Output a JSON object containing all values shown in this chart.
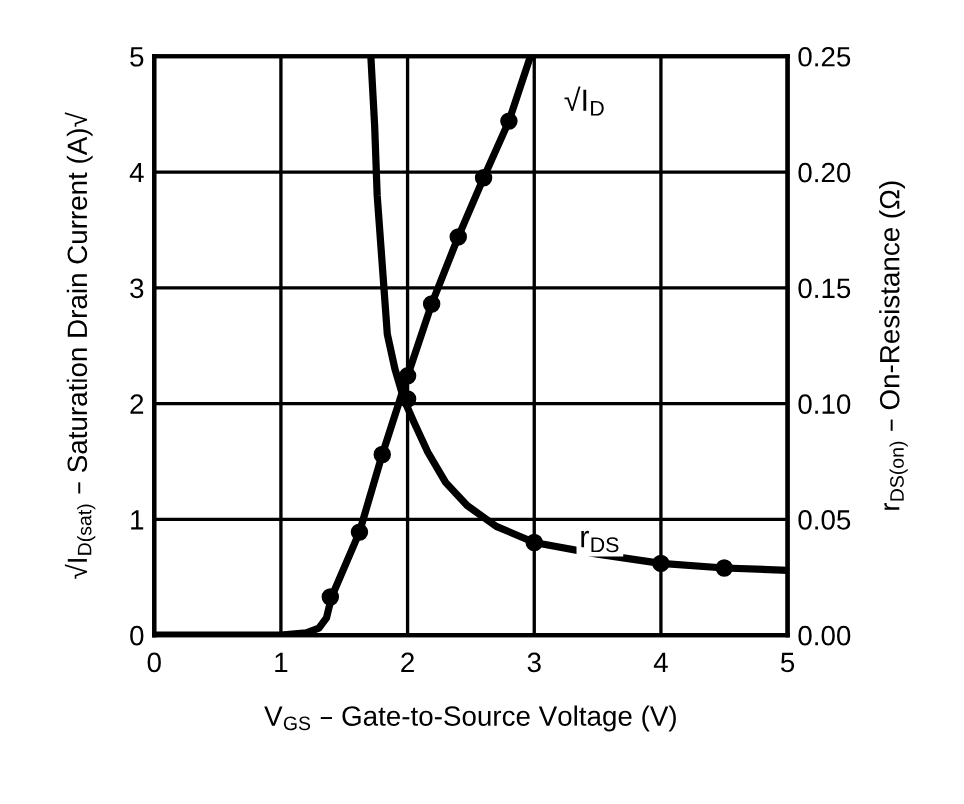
{
  "chart_data": {
    "type": "line",
    "xlabel": "V$_{GS}$ – Gate-to-Source Voltage (V)",
    "ylabel": "√I$_{D(sat)}$ – Saturation Drain Current (A)√",
    "y2label": "r$_{DS(on)}$ – On-Resistance (Ω)",
    "series": [
      {
        "name": "√I$_{D}$",
        "color": "#000000",
        "marker": "none",
        "x": [
          0,
          1.0,
          1.2,
          1.3,
          1.36,
          1.4,
          1.62,
          1.8,
          2.0,
          2.19,
          2.4,
          2.6,
          2.8,
          2.97
        ],
        "values": [
          0,
          0,
          0.02,
          0.06,
          0.15,
          0.33,
          0.89,
          1.56,
          2.24,
          2.86,
          3.44,
          3.95,
          4.44,
          5.0
        ]
      },
      {
        "type": "scatter",
        "color": "#000000",
        "marker": "circle",
        "x": [
          1.39,
          1.62,
          1.8,
          2.0,
          2.19,
          2.4,
          2.6,
          2.8
        ],
        "values": [
          0.33,
          0.89,
          1.56,
          2.24,
          2.86,
          3.44,
          3.95,
          4.44
        ]
      },
      {
        "name": "r$_{DS}$",
        "axis": "y2",
        "color": "#000000",
        "marker": "none",
        "x": [
          1.71,
          1.74,
          1.76,
          1.8,
          1.84,
          1.9,
          1.97,
          2.05,
          2.16,
          2.3,
          2.47,
          2.7,
          3.0,
          3.5,
          4.0,
          4.5,
          5.0
        ],
        "values": [
          0.25,
          0.22,
          0.19,
          0.16,
          0.13,
          0.115,
          0.102,
          0.092,
          0.079,
          0.066,
          0.056,
          0.047,
          0.04,
          0.035,
          0.031,
          0.029,
          0.028
        ]
      },
      {
        "type": "scatter",
        "axis": "y2",
        "color": "#000000",
        "marker": "circle",
        "x": [
          2.0,
          3.0,
          4.0,
          4.5
        ],
        "values": [
          0.102,
          0.04,
          0.031,
          0.029
        ]
      }
    ],
    "xlim": [
      0,
      5
    ],
    "xticks": [
      0,
      1,
      2,
      3,
      4,
      5
    ],
    "ylim": [
      0,
      5
    ],
    "yticks": [
      0,
      1,
      2,
      3,
      4,
      5
    ],
    "y2lim": [
      0,
      0.25
    ],
    "y2ticks": [
      {
        "value": 0,
        "label": "0.00"
      },
      {
        "value": 0.05,
        "label": "0.05"
      },
      {
        "value": 0.1,
        "label": "0.10"
      },
      {
        "value": 0.15,
        "label": "0.15"
      },
      {
        "value": 0.2,
        "label": "0.20"
      },
      {
        "value": 0.25,
        "label": "0.25"
      }
    ],
    "grid": true
  }
}
